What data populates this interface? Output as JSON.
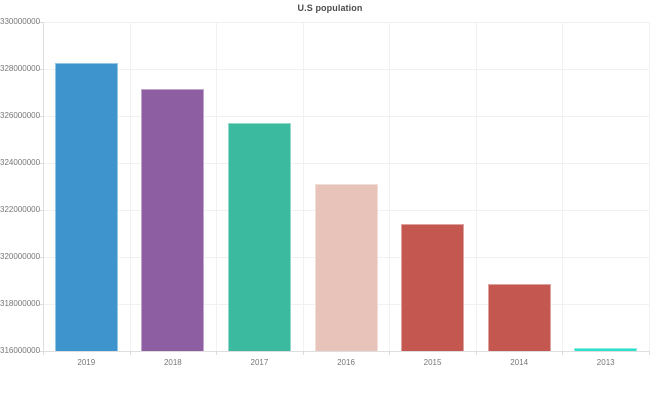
{
  "page": {
    "background_color": "#ffffff"
  },
  "chart": {
    "title": "U.S population"
  },
  "chart_data": {
    "type": "bar",
    "title": "U.S population",
    "categories": [
      "2019",
      "2018",
      "2017",
      "2016",
      "2015",
      "2014",
      "2013"
    ],
    "values": [
      328239523,
      327167434,
      325719178,
      323127513,
      321418820,
      318857056,
      316128839
    ],
    "bar_colors": [
      "#3e95cd",
      "#8e5ea2",
      "#3cba9f",
      "#e8c3b9",
      "#c45850",
      "#c45850",
      "#30dfc8"
    ],
    "xlabel": "",
    "ylabel": "",
    "ylim": [
      316000000,
      330000000
    ],
    "ytick_step": 2000000,
    "ytick_labels": [
      "330000000",
      "328000000",
      "326000000",
      "324000000",
      "322000000",
      "320000000",
      "318000000",
      "316000000"
    ],
    "grid": true,
    "legend": "none",
    "style": {
      "gridline_color": "#f1f1f1",
      "axis_line_color": "#dedede",
      "tick_mark_color": "#dcdcdc",
      "tick_label_color": "#777777",
      "title_color": "#4c4c4c"
    }
  }
}
